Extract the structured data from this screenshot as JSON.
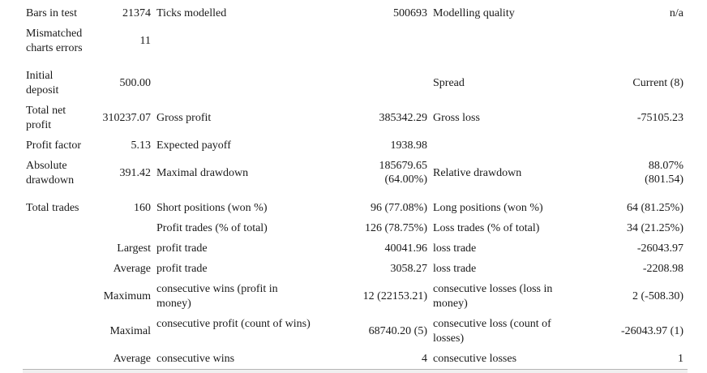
{
  "rows": {
    "bars": {
      "l1": "Bars in test",
      "v1": "21374",
      "l2": "Ticks modelled",
      "v2": "500693",
      "l3": "Modelling quality",
      "v3": "n/a"
    },
    "mismatch": {
      "l1": "Mismatched charts errors",
      "v1": "11"
    },
    "deposit": {
      "l1": "Initial deposit",
      "v1": "500.00",
      "l3": "Spread",
      "v3": "Current (8)"
    },
    "netprofit": {
      "l1": "Total net profit",
      "v1": "310237.07",
      "l2": "Gross profit",
      "v2": "385342.29",
      "l3": "Gross loss",
      "v3": "-75105.23"
    },
    "pf": {
      "l1": "Profit factor",
      "v1": "5.13",
      "l2": "Expected payoff",
      "v2": "1938.98"
    },
    "dd": {
      "l1": "Absolute drawdown",
      "v1": "391.42",
      "l2": "Maximal drawdown",
      "v2a": "185679.65",
      "v2b": "(64.00%)",
      "l3": "Relative drawdown",
      "v3a": "88.07%",
      "v3b": "(801.54)"
    },
    "trades": {
      "l1": "Total trades",
      "v1": "160",
      "l2": "Short positions (won %)",
      "v2": "96 (77.08%)",
      "l3": "Long positions (won %)",
      "v3": "64 (81.25%)"
    },
    "ptrades": {
      "l2": "Profit trades (% of total)",
      "v2": "126 (78.75%)",
      "l3": "Loss trades (% of total)",
      "v3": "34 (21.25%)"
    },
    "largest": {
      "l1": "Largest",
      "l2": "profit trade",
      "v2": "40041.96",
      "l3": "loss trade",
      "v3": "-26043.97"
    },
    "average": {
      "l1": "Average",
      "l2": "profit trade",
      "v2": "3058.27",
      "l3": "loss trade",
      "v3": "-2208.98"
    },
    "maximum": {
      "l1": "Maximum",
      "l2": "consecutive wins (profit in money)",
      "v2": "12 (22153.21)",
      "l3": "consecutive losses (loss in money)",
      "v3": "2 (-508.30)"
    },
    "maximal": {
      "l1": "Maximal",
      "l2": "consecutive profit (count of wins)",
      "v2": "68740.20 (5)",
      "l3": "consecutive loss (count of losses)",
      "v3": "-26043.97 (1)"
    },
    "avgconsec": {
      "l1": "Average",
      "l2": "consecutive wins",
      "v2": "4",
      "l3": "consecutive losses",
      "v3": "1"
    }
  }
}
